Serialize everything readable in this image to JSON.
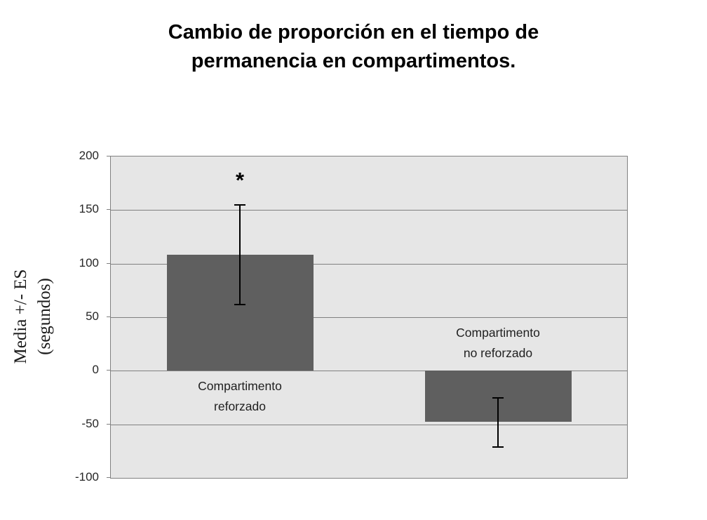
{
  "chart_data": {
    "type": "bar",
    "title": "Cambio de proporción en el tiempo de permanencia en compartimentos.",
    "title_lines": [
      "Cambio de proporción en el tiempo de",
      "permanencia en compartimentos."
    ],
    "ylabel": "Media +/- ES (segundos)",
    "ylabel_lines": [
      "Media +/- ES",
      "(segundos)"
    ],
    "xlabel": "",
    "categories": [
      "Compartimento reforzado",
      "Compartimento no reforzado"
    ],
    "category_label_lines": [
      [
        "Compartimento",
        "reforzado"
      ],
      [
        "Compartimento",
        "no reforzado"
      ]
    ],
    "values": [
      108,
      -48
    ],
    "error_bars": [
      {
        "upper": 155,
        "lower": 62
      },
      {
        "upper": -25,
        "lower": -71
      }
    ],
    "annotations": [
      {
        "text": "*",
        "target_category": "Compartimento reforzado",
        "position": "above-error-bar"
      }
    ],
    "ylim": [
      -100,
      200
    ],
    "yticks": [
      200,
      150,
      100,
      50,
      0,
      -50,
      -100
    ],
    "grid": "horizontal",
    "legend_position": "none",
    "colors": {
      "bar_fill": "#5f5f5f",
      "plot_background": "#e6e6e6",
      "gridline": "#808080",
      "plot_border": "#808080",
      "error_bar": "#000000",
      "title_text": "#000000",
      "tick_text": "#262626",
      "page_background": "#ffffff"
    }
  }
}
